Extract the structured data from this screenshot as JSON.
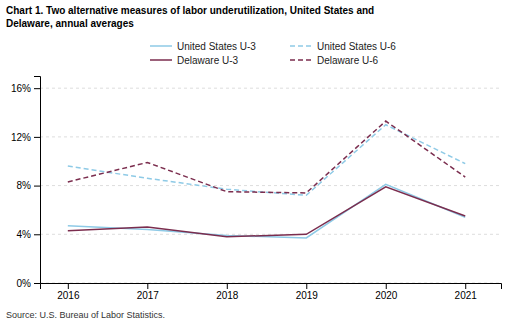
{
  "chart_data": {
    "type": "line",
    "title": [
      "Chart 1. Two alternative measures of labor underutilization, United States and",
      "Delaware, annual averages"
    ],
    "source": "Source: U.S. Bureau of Labor Statistics.",
    "x": [
      2016,
      2017,
      2018,
      2019,
      2020,
      2021
    ],
    "xlim": [
      2015.65,
      2021.45
    ],
    "xticks": [
      2016,
      2017,
      2018,
      2019,
      2020,
      2021
    ],
    "ylim": [
      0,
      17
    ],
    "yticks": [
      {
        "value": 0,
        "label": "0%"
      },
      {
        "value": 4,
        "label": "4%"
      },
      {
        "value": 8,
        "label": "8%"
      },
      {
        "value": 12,
        "label": "12%"
      },
      {
        "value": 16,
        "label": "16%"
      }
    ],
    "grid": true,
    "legend": "top",
    "series": [
      {
        "name": "United States U-3",
        "color": "#8ecae6",
        "line_style": "solid",
        "values": [
          4.7,
          4.4,
          3.9,
          3.7,
          8.1,
          5.4
        ]
      },
      {
        "name": "United States U-6",
        "color": "#8ecae6",
        "line_style": "dashed",
        "values": [
          9.6,
          8.6,
          7.7,
          7.2,
          13.0,
          9.8
        ]
      },
      {
        "name": "Delaware U-3",
        "color": "#7b2d4e",
        "line_style": "solid",
        "values": [
          4.3,
          4.6,
          3.8,
          4.0,
          7.9,
          5.5
        ]
      },
      {
        "name": "Delaware U-6",
        "color": "#7b2d4e",
        "line_style": "dashed",
        "values": [
          8.3,
          9.9,
          7.5,
          7.4,
          13.3,
          8.7
        ]
      }
    ]
  }
}
